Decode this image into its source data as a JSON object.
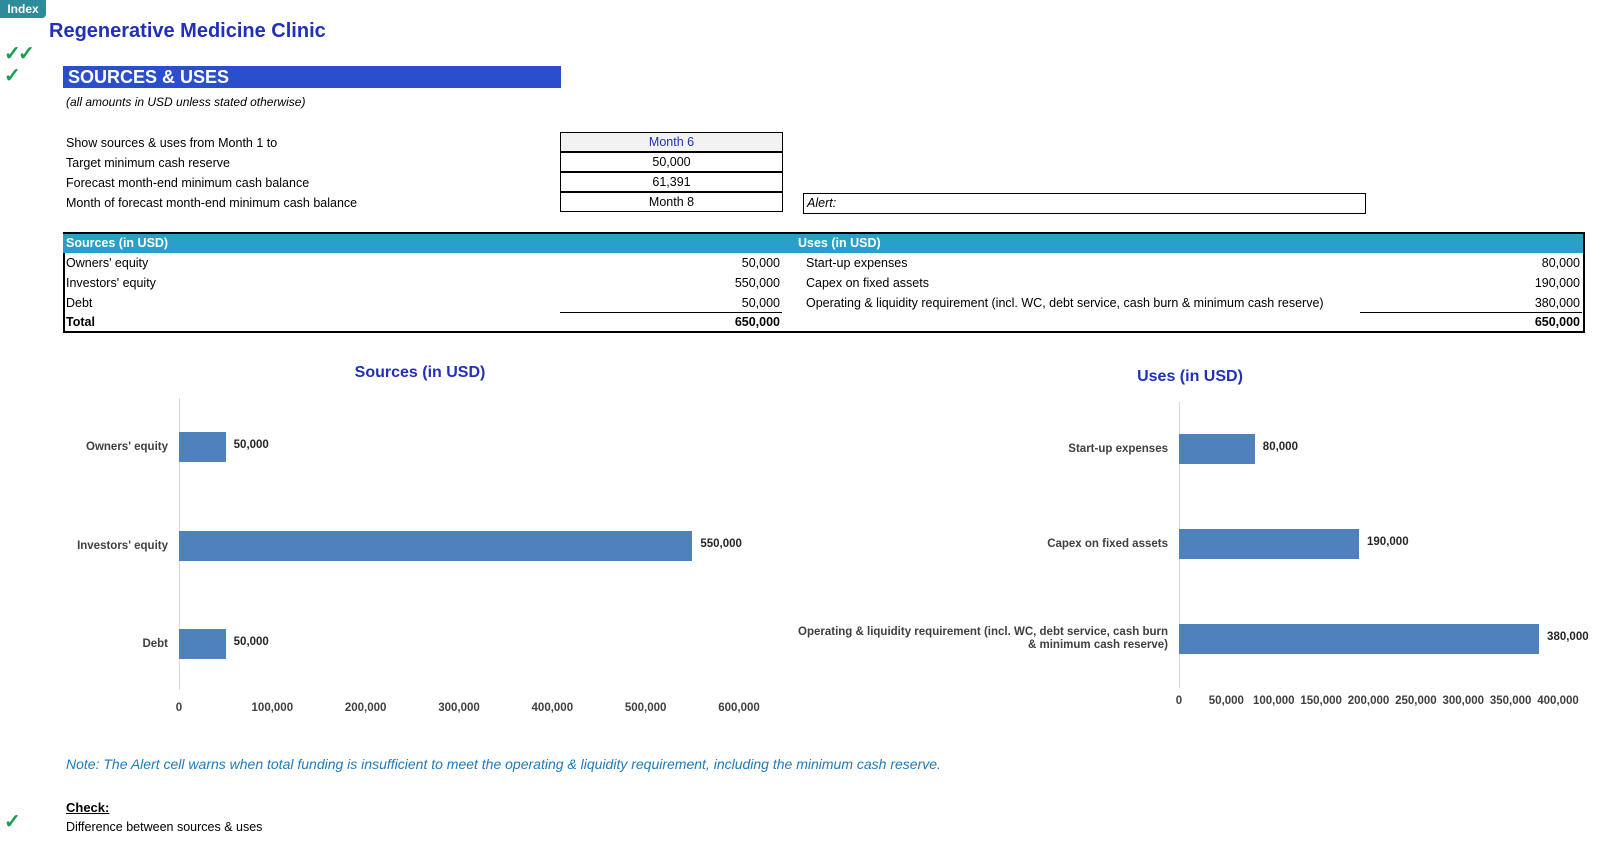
{
  "nav": {
    "index_label": "Index"
  },
  "title": "Regenerative Medicine Clinic",
  "section": "SOURCES & USES",
  "currency_note": "(all amounts in USD unless stated otherwise)",
  "params": [
    {
      "label": "Show sources & uses from Month 1 to",
      "value": "Month 6"
    },
    {
      "label": "Target minimum cash reserve",
      "value": "50,000"
    },
    {
      "label": "Forecast month-end minimum cash balance",
      "value": "61,391"
    },
    {
      "label": "Month of forecast month-end minimum cash balance",
      "value": "Month 8"
    }
  ],
  "alert": {
    "label": "Alert:"
  },
  "table": {
    "sources_header": "Sources (in USD)",
    "uses_header": "Uses (in USD)",
    "sources": [
      {
        "label": "Owners' equity",
        "value": "50,000"
      },
      {
        "label": "Investors' equity",
        "value": "550,000"
      },
      {
        "label": "Debt",
        "value": "50,000"
      }
    ],
    "sources_total": {
      "label": "Total",
      "value": "650,000"
    },
    "uses": [
      {
        "label": "Start-up expenses",
        "value": "80,000"
      },
      {
        "label": "Capex on fixed assets",
        "value": "190,000"
      },
      {
        "label": "Operating & liquidity requirement (incl. WC, debt service, cash burn & minimum cash reserve)",
        "value": "380,000"
      }
    ],
    "uses_total": {
      "value": "650,000"
    }
  },
  "chart_data": [
    {
      "type": "bar",
      "orientation": "horizontal",
      "title": "Sources (in USD)",
      "categories": [
        "Owners' equity",
        "Investors' equity",
        "Debt"
      ],
      "values": [
        50000,
        550000,
        50000
      ],
      "value_labels": [
        "50,000",
        "550,000",
        "50,000"
      ],
      "xlim": [
        0,
        600000
      ],
      "ticks": [
        "0",
        "100,000",
        "200,000",
        "300,000",
        "400,000",
        "500,000",
        "600,000"
      ],
      "bar_color": "#4f81bd",
      "grid": false
    },
    {
      "type": "bar",
      "orientation": "horizontal",
      "title": "Uses (in USD)",
      "categories": [
        "Start-up expenses",
        "Capex on fixed assets",
        "Operating & liquidity requirement (incl. WC, debt service, cash burn & minimum cash reserve)"
      ],
      "values": [
        80000,
        190000,
        380000
      ],
      "value_labels": [
        "80,000",
        "190,000",
        "380,000"
      ],
      "xlim": [
        0,
        400000
      ],
      "ticks": [
        "0",
        "50,000",
        "100,000",
        "150,000",
        "200,000",
        "250,000",
        "300,000",
        "350,000",
        "400,000"
      ],
      "bar_color": "#4f81bd",
      "grid": false
    }
  ],
  "note": "Note: The Alert cell warns when total funding is insufficient to meet the operating & liquidity requirement, including the minimum cash reserve.",
  "check": {
    "title": "Check:",
    "label": "Difference between sources & uses"
  },
  "check_icon": "✓",
  "colors": {
    "accent": "#2b4fcc",
    "table_header": "#2aa0c8",
    "bar": "#4f81bd",
    "check": "#1a9b50"
  }
}
